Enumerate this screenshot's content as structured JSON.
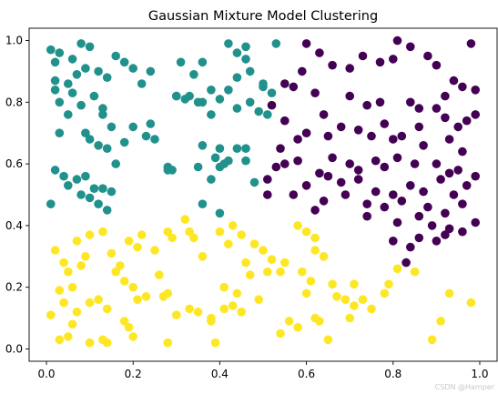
{
  "chart_data": {
    "type": "scatter",
    "title": "Gaussian Mixture Model Clustering",
    "xlabel": "",
    "ylabel": "",
    "xlim": [
      -0.04,
      1.04
    ],
    "ylim": [
      -0.04,
      1.04
    ],
    "xticks": [
      0.0,
      0.2,
      0.4,
      0.6,
      0.8,
      1.0
    ],
    "xtick_labels": [
      "0.0",
      "0.2",
      "0.4",
      "0.6",
      "0.8",
      "1.0"
    ],
    "yticks": [
      0.0,
      0.2,
      0.4,
      0.6,
      0.8,
      1.0
    ],
    "ytick_labels": [
      "0.0",
      "0.2",
      "0.4",
      "0.6",
      "0.8",
      "1.0"
    ],
    "grid": false,
    "legend": "none",
    "series": [
      {
        "color": "#440154",
        "points": [
          [
            0.6,
            0.99
          ],
          [
            0.63,
            0.96
          ],
          [
            0.81,
            1.0
          ],
          [
            0.84,
            0.98
          ],
          [
            0.98,
            0.99
          ],
          [
            0.73,
            0.95
          ],
          [
            0.77,
            0.93
          ],
          [
            0.8,
            0.94
          ],
          [
            0.66,
            0.92
          ],
          [
            0.7,
            0.91
          ],
          [
            0.59,
            0.9
          ],
          [
            0.88,
            0.95
          ],
          [
            0.9,
            0.92
          ],
          [
            0.94,
            0.87
          ],
          [
            0.96,
            0.85
          ],
          [
            0.99,
            0.84
          ],
          [
            0.92,
            0.82
          ],
          [
            0.55,
            0.86
          ],
          [
            0.57,
            0.85
          ],
          [
            0.62,
            0.83
          ],
          [
            0.7,
            0.82
          ],
          [
            0.74,
            0.79
          ],
          [
            0.77,
            0.8
          ],
          [
            0.84,
            0.8
          ],
          [
            0.86,
            0.78
          ],
          [
            0.9,
            0.78
          ],
          [
            0.52,
            0.79
          ],
          [
            0.55,
            0.74
          ],
          [
            0.6,
            0.7
          ],
          [
            0.68,
            0.72
          ],
          [
            0.64,
            0.76
          ],
          [
            0.72,
            0.71
          ],
          [
            0.78,
            0.73
          ],
          [
            0.82,
            0.69
          ],
          [
            0.86,
            0.72
          ],
          [
            0.92,
            0.75
          ],
          [
            0.95,
            0.72
          ],
          [
            0.97,
            0.74
          ],
          [
            0.99,
            0.76
          ],
          [
            0.54,
            0.65
          ],
          [
            0.58,
            0.68
          ],
          [
            0.65,
            0.69
          ],
          [
            0.75,
            0.69
          ],
          [
            0.8,
            0.68
          ],
          [
            0.87,
            0.66
          ],
          [
            0.93,
            0.68
          ],
          [
            0.96,
            0.64
          ],
          [
            0.55,
            0.6
          ],
          [
            0.58,
            0.61
          ],
          [
            0.66,
            0.62
          ],
          [
            0.7,
            0.6
          ],
          [
            0.72,
            0.58
          ],
          [
            0.76,
            0.61
          ],
          [
            0.78,
            0.59
          ],
          [
            0.81,
            0.62
          ],
          [
            0.85,
            0.6
          ],
          [
            0.9,
            0.6
          ],
          [
            0.93,
            0.57
          ],
          [
            0.95,
            0.58
          ],
          [
            0.99,
            0.56
          ],
          [
            0.51,
            0.55
          ],
          [
            0.53,
            0.59
          ],
          [
            0.6,
            0.53
          ],
          [
            0.63,
            0.57
          ],
          [
            0.65,
            0.56
          ],
          [
            0.68,
            0.54
          ],
          [
            0.72,
            0.55
          ],
          [
            0.76,
            0.51
          ],
          [
            0.8,
            0.5
          ],
          [
            0.84,
            0.53
          ],
          [
            0.87,
            0.51
          ],
          [
            0.91,
            0.55
          ],
          [
            0.94,
            0.5
          ],
          [
            0.97,
            0.53
          ],
          [
            0.51,
            0.5
          ],
          [
            0.57,
            0.5
          ],
          [
            0.64,
            0.48
          ],
          [
            0.69,
            0.5
          ],
          [
            0.74,
            0.47
          ],
          [
            0.78,
            0.46
          ],
          [
            0.82,
            0.48
          ],
          [
            0.88,
            0.46
          ],
          [
            0.92,
            0.44
          ],
          [
            0.96,
            0.47
          ],
          [
            0.62,
            0.45
          ],
          [
            0.74,
            0.43
          ],
          [
            0.81,
            0.41
          ],
          [
            0.86,
            0.43
          ],
          [
            0.89,
            0.4
          ],
          [
            0.93,
            0.39
          ],
          [
            0.96,
            0.38
          ],
          [
            0.99,
            0.41
          ],
          [
            0.8,
            0.35
          ],
          [
            0.84,
            0.33
          ],
          [
            0.86,
            0.36
          ],
          [
            0.9,
            0.35
          ],
          [
            0.92,
            0.37
          ],
          [
            0.83,
            0.28
          ]
        ]
      },
      {
        "color": "#21918c",
        "points": [
          [
            0.01,
            0.97
          ],
          [
            0.03,
            0.96
          ],
          [
            0.06,
            0.94
          ],
          [
            0.08,
            0.99
          ],
          [
            0.1,
            0.98
          ],
          [
            0.02,
            0.93
          ],
          [
            0.05,
            0.86
          ],
          [
            0.07,
            0.89
          ],
          [
            0.03,
            0.8
          ],
          [
            0.09,
            0.91
          ],
          [
            0.12,
            0.9
          ],
          [
            0.14,
            0.88
          ],
          [
            0.16,
            0.95
          ],
          [
            0.18,
            0.93
          ],
          [
            0.2,
            0.91
          ],
          [
            0.22,
            0.86
          ],
          [
            0.24,
            0.9
          ],
          [
            0.02,
            0.84
          ],
          [
            0.06,
            0.83
          ],
          [
            0.08,
            0.79
          ],
          [
            0.11,
            0.82
          ],
          [
            0.13,
            0.78
          ],
          [
            0.15,
            0.72
          ],
          [
            0.13,
            0.76
          ],
          [
            0.03,
            0.7
          ],
          [
            0.05,
            0.76
          ],
          [
            0.09,
            0.7
          ],
          [
            0.1,
            0.68
          ],
          [
            0.12,
            0.66
          ],
          [
            0.14,
            0.65
          ],
          [
            0.16,
            0.6
          ],
          [
            0.18,
            0.67
          ],
          [
            0.2,
            0.72
          ],
          [
            0.23,
            0.69
          ],
          [
            0.25,
            0.68
          ],
          [
            0.24,
            0.73
          ],
          [
            0.28,
            0.59
          ],
          [
            0.02,
            0.58
          ],
          [
            0.04,
            0.56
          ],
          [
            0.05,
            0.53
          ],
          [
            0.07,
            0.55
          ],
          [
            0.09,
            0.56
          ],
          [
            0.11,
            0.52
          ],
          [
            0.13,
            0.52
          ],
          [
            0.15,
            0.51
          ],
          [
            0.08,
            0.5
          ],
          [
            0.1,
            0.49
          ],
          [
            0.12,
            0.47
          ],
          [
            0.14,
            0.45
          ],
          [
            0.01,
            0.47
          ],
          [
            0.3,
            0.82
          ],
          [
            0.32,
            0.81
          ],
          [
            0.34,
            0.89
          ],
          [
            0.36,
            0.93
          ],
          [
            0.38,
            0.84
          ],
          [
            0.4,
            0.81
          ],
          [
            0.42,
            0.99
          ],
          [
            0.44,
            0.96
          ],
          [
            0.46,
            0.98
          ],
          [
            0.44,
            0.88
          ],
          [
            0.46,
            0.94
          ],
          [
            0.47,
            0.9
          ],
          [
            0.42,
            0.84
          ],
          [
            0.35,
            0.8
          ],
          [
            0.5,
            0.86
          ],
          [
            0.52,
            0.83
          ],
          [
            0.53,
            0.99
          ],
          [
            0.5,
            0.85
          ],
          [
            0.31,
            0.93
          ],
          [
            0.49,
            0.77
          ],
          [
            0.51,
            0.76
          ],
          [
            0.44,
            0.78
          ],
          [
            0.38,
            0.76
          ],
          [
            0.36,
            0.66
          ],
          [
            0.4,
            0.65
          ],
          [
            0.42,
            0.61
          ],
          [
            0.39,
            0.62
          ],
          [
            0.35,
            0.59
          ],
          [
            0.38,
            0.55
          ],
          [
            0.41,
            0.6
          ],
          [
            0.44,
            0.65
          ],
          [
            0.46,
            0.61
          ],
          [
            0.48,
            0.54
          ],
          [
            0.36,
            0.47
          ],
          [
            0.4,
            0.44
          ],
          [
            0.33,
            0.82
          ],
          [
            0.28,
            0.58
          ],
          [
            0.36,
            0.8
          ],
          [
            0.3,
            0.82
          ],
          [
            0.47,
            0.8
          ],
          [
            0.4,
            0.59
          ],
          [
            0.46,
            0.65
          ],
          [
            0.29,
            0.58
          ],
          [
            0.02,
            0.87
          ]
        ]
      },
      {
        "color": "#fde725",
        "points": [
          [
            0.02,
            0.32
          ],
          [
            0.04,
            0.28
          ],
          [
            0.05,
            0.25
          ],
          [
            0.07,
            0.35
          ],
          [
            0.09,
            0.3
          ],
          [
            0.08,
            0.27
          ],
          [
            0.06,
            0.2
          ],
          [
            0.03,
            0.19
          ],
          [
            0.1,
            0.37
          ],
          [
            0.13,
            0.38
          ],
          [
            0.15,
            0.31
          ],
          [
            0.17,
            0.27
          ],
          [
            0.19,
            0.35
          ],
          [
            0.21,
            0.33
          ],
          [
            0.16,
            0.25
          ],
          [
            0.18,
            0.22
          ],
          [
            0.2,
            0.2
          ],
          [
            0.22,
            0.37
          ],
          [
            0.25,
            0.32
          ],
          [
            0.26,
            0.24
          ],
          [
            0.28,
            0.38
          ],
          [
            0.29,
            0.36
          ],
          [
            0.32,
            0.42
          ],
          [
            0.34,
            0.36
          ],
          [
            0.36,
            0.3
          ],
          [
            0.4,
            0.38
          ],
          [
            0.42,
            0.34
          ],
          [
            0.43,
            0.4
          ],
          [
            0.45,
            0.37
          ],
          [
            0.48,
            0.34
          ],
          [
            0.5,
            0.32
          ],
          [
            0.52,
            0.29
          ],
          [
            0.55,
            0.28
          ],
          [
            0.58,
            0.4
          ],
          [
            0.6,
            0.38
          ],
          [
            0.62,
            0.36
          ],
          [
            0.64,
            0.3
          ],
          [
            0.59,
            0.25
          ],
          [
            0.61,
            0.22
          ],
          [
            0.51,
            0.25
          ],
          [
            0.54,
            0.25
          ],
          [
            0.46,
            0.28
          ],
          [
            0.47,
            0.24
          ],
          [
            0.41,
            0.2
          ],
          [
            0.44,
            0.18
          ],
          [
            0.49,
            0.16
          ],
          [
            0.27,
            0.17
          ],
          [
            0.28,
            0.18
          ],
          [
            0.23,
            0.17
          ],
          [
            0.21,
            0.16
          ],
          [
            0.12,
            0.16
          ],
          [
            0.14,
            0.13
          ],
          [
            0.1,
            0.15
          ],
          [
            0.07,
            0.12
          ],
          [
            0.04,
            0.15
          ],
          [
            0.01,
            0.11
          ],
          [
            0.06,
            0.08
          ],
          [
            0.03,
            0.03
          ],
          [
            0.05,
            0.04
          ],
          [
            0.1,
            0.02
          ],
          [
            0.13,
            0.03
          ],
          [
            0.14,
            0.02
          ],
          [
            0.2,
            0.04
          ],
          [
            0.19,
            0.07
          ],
          [
            0.18,
            0.09
          ],
          [
            0.28,
            0.02
          ],
          [
            0.3,
            0.11
          ],
          [
            0.33,
            0.13
          ],
          [
            0.35,
            0.12
          ],
          [
            0.38,
            0.09
          ],
          [
            0.41,
            0.13
          ],
          [
            0.43,
            0.14
          ],
          [
            0.45,
            0.12
          ],
          [
            0.39,
            0.02
          ],
          [
            0.33,
            0.38
          ],
          [
            0.38,
            0.1
          ],
          [
            0.56,
            0.09
          ],
          [
            0.58,
            0.07
          ],
          [
            0.6,
            0.18
          ],
          [
            0.62,
            0.1
          ],
          [
            0.63,
            0.09
          ],
          [
            0.65,
            0.03
          ],
          [
            0.67,
            0.17
          ],
          [
            0.69,
            0.16
          ],
          [
            0.71,
            0.14
          ],
          [
            0.73,
            0.16
          ],
          [
            0.75,
            0.13
          ],
          [
            0.78,
            0.18
          ],
          [
            0.79,
            0.21
          ],
          [
            0.81,
            0.26
          ],
          [
            0.85,
            0.25
          ],
          [
            0.89,
            0.03
          ],
          [
            0.93,
            0.18
          ],
          [
            0.91,
            0.09
          ],
          [
            0.98,
            0.15
          ],
          [
            0.66,
            0.21
          ],
          [
            0.7,
            0.1
          ],
          [
            0.54,
            0.05
          ],
          [
            0.71,
            0.21
          ],
          [
            0.62,
            0.32
          ]
        ]
      }
    ]
  },
  "watermark": "CSDN @Hamper"
}
